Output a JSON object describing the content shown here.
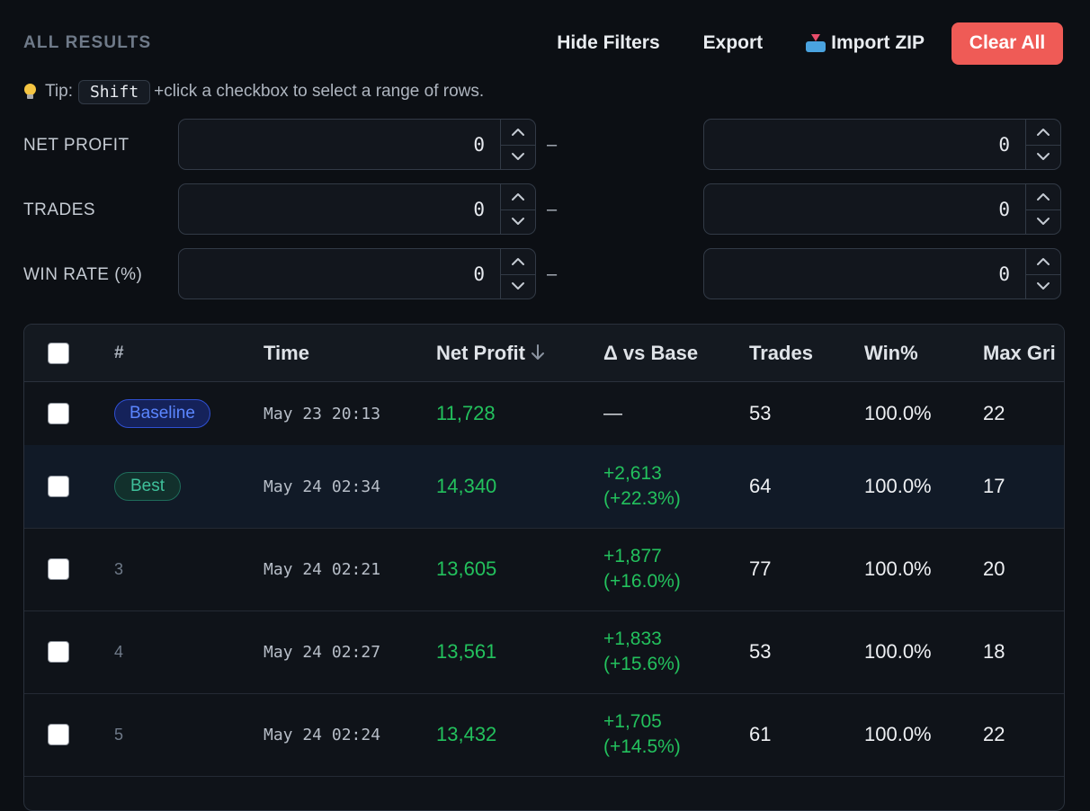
{
  "header": {
    "title": "ALL RESULTS",
    "hide_filters": "Hide Filters",
    "export": "Export",
    "import_zip": "Import ZIP",
    "clear_all": "Clear All"
  },
  "tip": {
    "prefix": "Tip:",
    "key": "Shift",
    "suffix": "+click a checkbox to select a range of rows."
  },
  "filters": [
    {
      "label": "NET PROFIT",
      "min": "0",
      "max": "0",
      "separator": "–"
    },
    {
      "label": "TRADES",
      "min": "0",
      "max": "0",
      "separator": "–"
    },
    {
      "label": "WIN RATE (%)",
      "min": "0",
      "max": "0",
      "separator": "–"
    }
  ],
  "table": {
    "columns": [
      "#",
      "Time",
      "Net Profit",
      "Δ vs Base",
      "Trades",
      "Win%",
      "Max Gri"
    ],
    "sort_column": "Net Profit",
    "sort_direction": "descending",
    "rows": [
      {
        "badge": "Baseline",
        "time": "May 23 20:13",
        "net_profit": "11,728",
        "delta_line1": "—",
        "delta_line2": "",
        "trades": "53",
        "win": "100.0%",
        "max_grid": "22"
      },
      {
        "badge": "Best",
        "time": "May 24 02:34",
        "net_profit": "14,340",
        "delta_line1": "+2,613",
        "delta_line2": "(+22.3%)",
        "trades": "64",
        "win": "100.0%",
        "max_grid": "17"
      },
      {
        "idx": "3",
        "time": "May 24 02:21",
        "net_profit": "13,605",
        "delta_line1": "+1,877",
        "delta_line2": "(+16.0%)",
        "trades": "77",
        "win": "100.0%",
        "max_grid": "20"
      },
      {
        "idx": "4",
        "time": "May 24 02:27",
        "net_profit": "13,561",
        "delta_line1": "+1,833",
        "delta_line2": "(+15.6%)",
        "trades": "53",
        "win": "100.0%",
        "max_grid": "18"
      },
      {
        "idx": "5",
        "time": "May 24 02:24",
        "net_profit": "13,432",
        "delta_line1": "+1,705",
        "delta_line2": "(+14.5%)",
        "trades": "61",
        "win": "100.0%",
        "max_grid": "22"
      }
    ]
  },
  "colors": {
    "background": "#0c0f14",
    "accent_danger": "#ef5b56",
    "positive": "#23c15d",
    "baseline_badge": "#5b86ff",
    "best_badge": "#3fc09b"
  },
  "icons": {
    "tip": "lightbulb-icon",
    "import": "inbox-tray-icon",
    "sort": "arrow-down-icon",
    "spin_up": "chevron-up-icon",
    "spin_down": "chevron-down-icon"
  }
}
